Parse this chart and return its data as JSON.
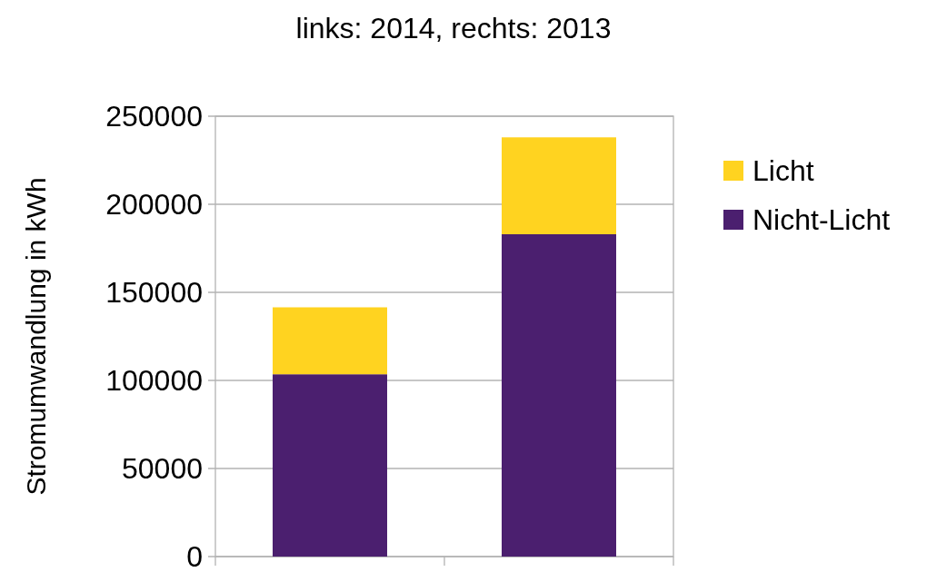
{
  "chart_data": {
    "type": "bar",
    "title": "links: 2014, rechts: 2013",
    "ylabel": "Stromumwandlung in kWh",
    "categories": [
      null,
      null
    ],
    "stacked": true,
    "series": [
      {
        "name": "Nicht-Licht",
        "color": "#4b1f6f",
        "values": [
          103500,
          183000
        ]
      },
      {
        "name": "Licht",
        "color": "#ffd320",
        "values": [
          38000,
          55000
        ]
      }
    ],
    "ylim": [
      0,
      250000
    ],
    "yticks": [
      0,
      50000,
      100000,
      150000,
      200000,
      250000
    ],
    "grid": "y",
    "legend": "right"
  }
}
